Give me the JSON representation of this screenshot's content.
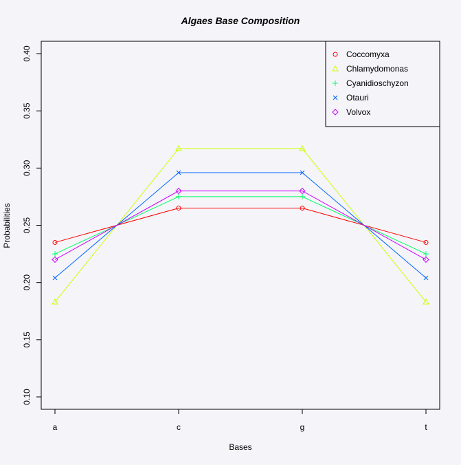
{
  "chart_data": {
    "type": "line",
    "title": "Algaes Base Composition",
    "xlabel": "Bases",
    "ylabel": "Probabilities",
    "categories": [
      "a",
      "c",
      "g",
      "t"
    ],
    "ylim": [
      0.1,
      0.4
    ],
    "yticks": [
      "0.10",
      "0.15",
      "0.20",
      "0.25",
      "0.30",
      "0.35",
      "0.40"
    ],
    "grid": false,
    "legend_position": "top-right",
    "series": [
      {
        "name": "Coccomyxa",
        "color": "#ff0000",
        "marker": "circle",
        "values": [
          0.235,
          0.265,
          0.265,
          0.235
        ]
      },
      {
        "name": "Chlamydomonas",
        "color": "#ccff00",
        "marker": "triangle",
        "values": [
          0.183,
          0.317,
          0.317,
          0.183
        ]
      },
      {
        "name": "Cyanidioschyzon",
        "color": "#00ff66",
        "marker": "plus",
        "values": [
          0.225,
          0.275,
          0.275,
          0.225
        ]
      },
      {
        "name": "Otauri",
        "color": "#0066ff",
        "marker": "cross",
        "values": [
          0.204,
          0.296,
          0.296,
          0.204
        ]
      },
      {
        "name": "Volvox",
        "color": "#cc00ff",
        "marker": "diamond",
        "values": [
          0.22,
          0.28,
          0.28,
          0.22
        ]
      }
    ]
  }
}
